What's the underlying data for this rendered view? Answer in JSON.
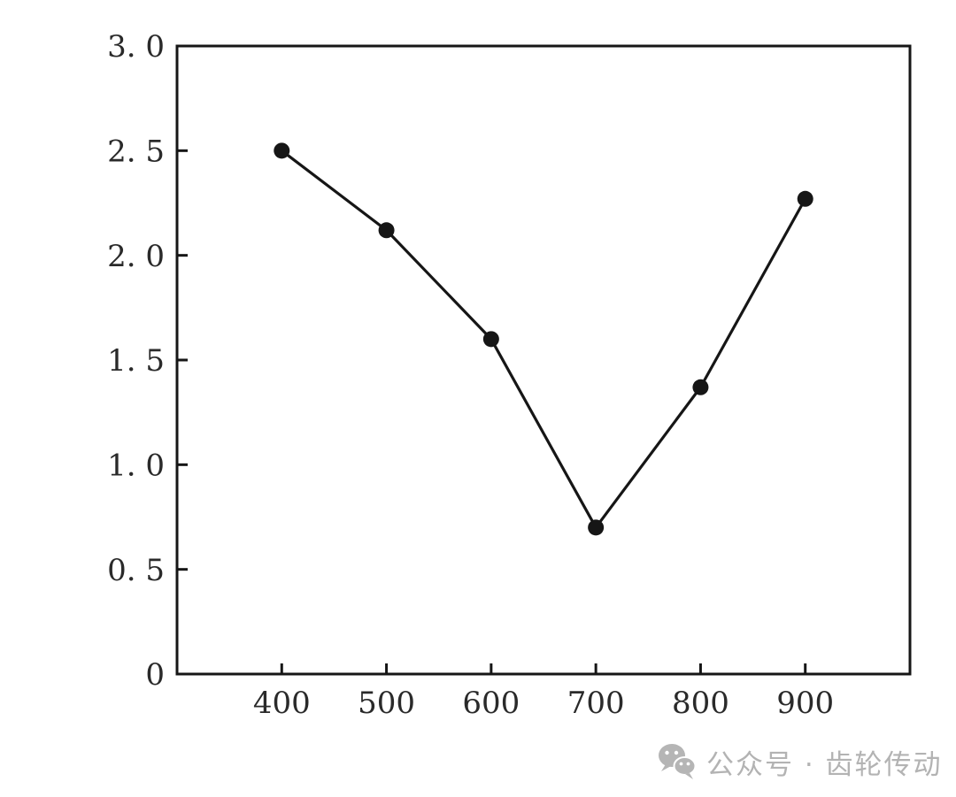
{
  "chart_data": {
    "type": "line",
    "title": "",
    "xlabel": "",
    "ylabel": "",
    "x": [
      400,
      500,
      600,
      700,
      800,
      900
    ],
    "y": [
      2.5,
      2.12,
      1.6,
      0.7,
      1.37,
      2.27
    ],
    "xlim": [
      300,
      1000
    ],
    "ylim": [
      0,
      3.0
    ],
    "x_ticks": [
      400,
      500,
      600,
      700,
      800,
      900
    ],
    "x_tick_labels": [
      "400",
      "500",
      "600",
      "700",
      "800",
      "900"
    ],
    "y_ticks": [
      0,
      0.5,
      1.0,
      1.5,
      2.0,
      2.5,
      3.0
    ],
    "y_tick_labels": [
      "0",
      "0. 5",
      "1. 0",
      "1. 5",
      "2. 0",
      "2. 5",
      "3. 0"
    ],
    "grid": false,
    "legend": false,
    "marker": "filled-circle",
    "marker_radius": 9,
    "line_width": 3.2,
    "axis_line_width": 3,
    "line_color": "#161616",
    "marker_color": "#161616",
    "axis_color": "#161616",
    "tick_label_color": "#2a2a2a",
    "tick_label_font_size": 34,
    "background_color": "#ffffff"
  },
  "watermark": {
    "icon": "wechat-icon",
    "text": "公众号 · 齿轮传动",
    "color": "#b3b3b3"
  }
}
